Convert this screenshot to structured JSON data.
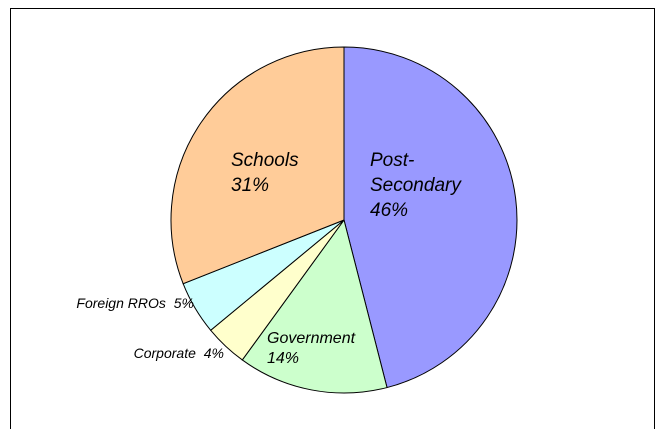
{
  "chart_data": {
    "type": "pie",
    "title": "",
    "legend": "none",
    "slices": [
      {
        "label": "Post-Secondary",
        "value": 46,
        "display": "46%",
        "color": "#9999ff"
      },
      {
        "label": "Government",
        "value": 14,
        "display": "14%",
        "color": "#ccffcc"
      },
      {
        "label": "Corporate",
        "value": 4,
        "display": "4%",
        "color": "#ffffcc"
      },
      {
        "label": "Foreign RROs",
        "value": 5,
        "display": "5%",
        "color": "#ccffff"
      },
      {
        "label": "Schools",
        "value": 31,
        "display": "31%",
        "color": "#ffcc99"
      }
    ]
  }
}
